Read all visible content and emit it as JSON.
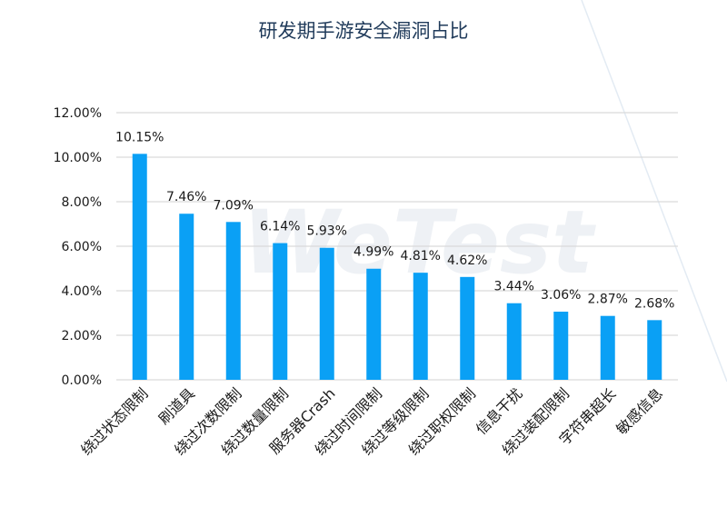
{
  "chart_data": {
    "type": "bar",
    "title": "研发期手游安全漏洞占比",
    "watermark": "WeTest",
    "categories": [
      "绕过状态限制",
      "刷道具",
      "绕过次数限制",
      "绕过数量限制",
      "服务器Crash",
      "绕过时间限制",
      "绕过等级限制",
      "绕过职权限制",
      "信息干扰",
      "绕过装配限制",
      "字符串超长",
      "敏感信息"
    ],
    "values": [
      10.15,
      7.46,
      7.09,
      6.14,
      5.93,
      4.99,
      4.81,
      4.62,
      3.44,
      3.06,
      2.87,
      2.68
    ],
    "value_labels": [
      "10.15%",
      "7.46%",
      "7.09%",
      "6.14%",
      "5.93%",
      "4.99%",
      "4.81%",
      "4.62%",
      "3.44%",
      "3.06%",
      "2.87%",
      "2.68%"
    ],
    "yticks": [
      "0.00%",
      "2.00%",
      "4.00%",
      "6.00%",
      "8.00%",
      "10.00%",
      "12.00%"
    ],
    "ylim": [
      0,
      12
    ],
    "xlabel": "",
    "ylabel": "",
    "grid": true,
    "bar_color": "#0aa0f5",
    "grid_color": "#d9d9d9"
  }
}
